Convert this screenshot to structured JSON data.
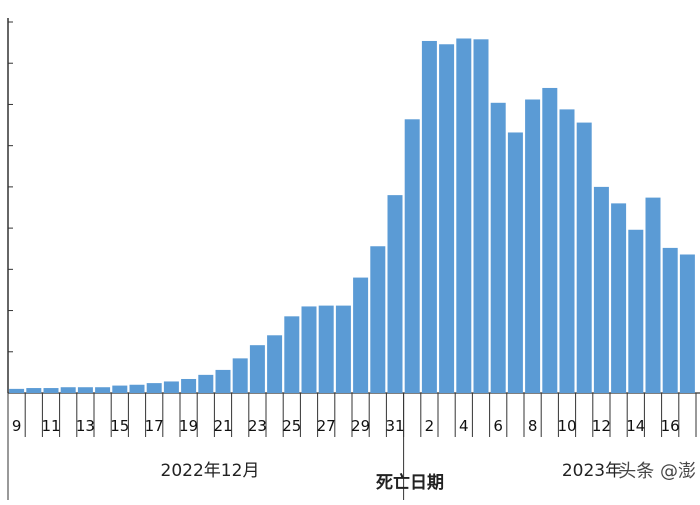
{
  "chart_data": {
    "type": "bar",
    "categories": [
      "9",
      "10",
      "11",
      "12",
      "13",
      "14",
      "15",
      "16",
      "17",
      "18",
      "19",
      "20",
      "21",
      "22",
      "23",
      "24",
      "25",
      "26",
      "27",
      "28",
      "29",
      "30",
      "31",
      "1",
      "2",
      "3",
      "4",
      "5",
      "6",
      "7",
      "8",
      "9",
      "10",
      "11",
      "12",
      "13",
      "14",
      "15",
      "16",
      "17"
    ],
    "values": [
      0.5,
      0.6,
      0.6,
      0.7,
      0.7,
      0.7,
      0.9,
      1.0,
      1.2,
      1.4,
      1.7,
      2.2,
      2.8,
      4.2,
      5.8,
      7.0,
      9.3,
      10.5,
      10.6,
      10.6,
      14.0,
      17.8,
      24.0,
      33.2,
      42.7,
      42.3,
      43.0,
      42.9,
      35.2,
      31.6,
      35.6,
      37.0,
      34.4,
      32.8,
      25.0,
      23.0,
      19.8,
      23.7,
      17.6,
      16.8
    ],
    "tick_labels": [
      "9",
      "11",
      "13",
      "15",
      "17",
      "19",
      "21",
      "23",
      "25",
      "27",
      "29",
      "31",
      "2",
      "4",
      "6",
      "8",
      "10",
      "12",
      "14",
      "16"
    ],
    "group_labels": [
      "2022年12月",
      "2023年"
    ],
    "xlabel": "死亡日期",
    "ylim": [
      0,
      45
    ],
    "bar_color": "#5b9bd5",
    "grid": false
  },
  "watermark": {
    "text": "头条 @澎"
  }
}
